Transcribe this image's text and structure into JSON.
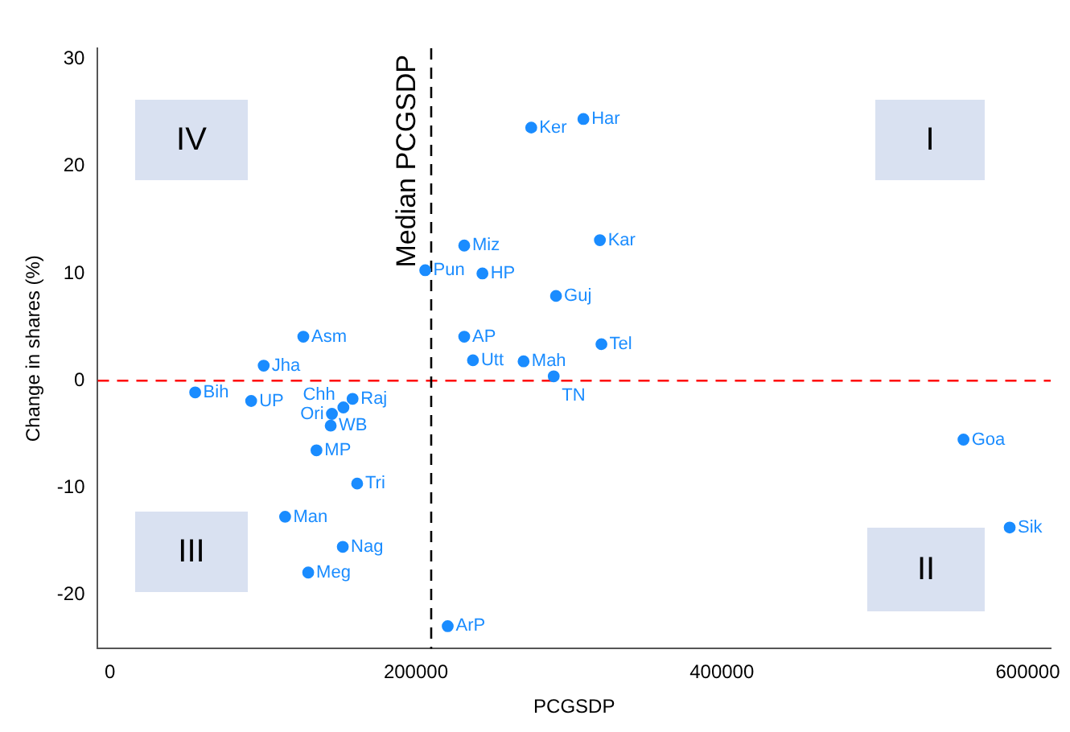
{
  "chart_data": {
    "type": "scatter",
    "xlabel": "PCGSDP",
    "ylabel": "Change in shares (%)",
    "xlim": [
      -8000,
      615000
    ],
    "xticks": [
      0,
      200000,
      400000,
      600000
    ],
    "ylim": [
      -25,
      31
    ],
    "yticks": [
      -20,
      -10,
      0,
      10,
      20,
      30
    ],
    "grid": false,
    "legend": false,
    "marker": "circle",
    "annotations": [
      "I",
      "II",
      "III",
      "IV"
    ],
    "ref_lines": [
      {
        "axis": "y",
        "value": 0,
        "color": "#ff0000",
        "line_style": "dashed"
      },
      {
        "axis": "x",
        "value": 210000,
        "label": "Median PCGSDP",
        "color": "#000000",
        "line_style": "dashed"
      }
    ],
    "series": [
      {
        "name": "Har",
        "color": "#1a8cff",
        "x": [
          309500
        ],
        "values": [
          24.4
        ]
      },
      {
        "name": "Ker",
        "color": "#1a8cff",
        "x": [
          275400
        ],
        "values": [
          23.6
        ]
      },
      {
        "name": "Kar",
        "color": "#1a8cff",
        "x": [
          320300
        ],
        "values": [
          13.1
        ]
      },
      {
        "name": "Miz",
        "color": "#1a8cff",
        "x": [
          231600
        ],
        "values": [
          12.6
        ]
      },
      {
        "name": "Pun",
        "color": "#1a8cff",
        "x": [
          206100
        ],
        "values": [
          10.3
        ]
      },
      {
        "name": "HP",
        "color": "#1a8cff",
        "x": [
          243500
        ],
        "values": [
          10.0
        ]
      },
      {
        "name": "Guj",
        "color": "#1a8cff",
        "x": [
          291600
        ],
        "values": [
          7.9
        ]
      },
      {
        "name": "AP",
        "color": "#1a8cff",
        "x": [
          231600
        ],
        "values": [
          4.1
        ]
      },
      {
        "name": "Asm",
        "color": "#1a8cff",
        "x": [
          126400
        ],
        "values": [
          4.1
        ]
      },
      {
        "name": "Tel",
        "color": "#1a8cff",
        "x": [
          321300
        ],
        "values": [
          3.4
        ]
      },
      {
        "name": "Utt",
        "color": "#1a8cff",
        "x": [
          237300
        ],
        "values": [
          1.9
        ]
      },
      {
        "name": "Mah",
        "color": "#1a8cff",
        "x": [
          270400
        ],
        "values": [
          1.8
        ]
      },
      {
        "name": "Jha",
        "color": "#1a8cff",
        "x": [
          100500
        ],
        "values": [
          1.4
        ]
      },
      {
        "name": "TN",
        "color": "#1a8cff",
        "x": [
          290100
        ],
        "values": [
          0.4
        ]
      },
      {
        "name": "Bih",
        "color": "#1a8cff",
        "x": [
          55700
        ],
        "values": [
          -1.1
        ]
      },
      {
        "name": "UP",
        "color": "#1a8cff",
        "x": [
          92300
        ],
        "values": [
          -1.9
        ]
      },
      {
        "name": "Raj",
        "color": "#1a8cff",
        "x": [
          158600
        ],
        "values": [
          -1.7
        ]
      },
      {
        "name": "Chh",
        "color": "#1a8cff",
        "x": [
          152600
        ],
        "values": [
          -2.5
        ]
      },
      {
        "name": "Ori",
        "color": "#1a8cff",
        "x": [
          145100
        ],
        "values": [
          -3.1
        ]
      },
      {
        "name": "WB",
        "color": "#1a8cff",
        "x": [
          144300
        ],
        "values": [
          -4.2
        ]
      },
      {
        "name": "Goa",
        "color": "#1a8cff",
        "x": [
          558000
        ],
        "values": [
          -5.5
        ]
      },
      {
        "name": "MP",
        "color": "#1a8cff",
        "x": [
          135000
        ],
        "values": [
          -6.5
        ]
      },
      {
        "name": "Tri",
        "color": "#1a8cff",
        "x": [
          161600
        ],
        "values": [
          -9.6
        ]
      },
      {
        "name": "Man",
        "color": "#1a8cff",
        "x": [
          114500
        ],
        "values": [
          -12.7
        ]
      },
      {
        "name": "Sik",
        "color": "#1a8cff",
        "x": [
          588200
        ],
        "values": [
          -13.7
        ]
      },
      {
        "name": "Nag",
        "color": "#1a8cff",
        "x": [
          152200
        ],
        "values": [
          -15.5
        ]
      },
      {
        "name": "Meg",
        "color": "#1a8cff",
        "x": [
          129600
        ],
        "values": [
          -17.9
        ]
      },
      {
        "name": "ArP",
        "color": "#1a8cff",
        "x": [
          220800
        ],
        "values": [
          -22.9
        ]
      }
    ]
  }
}
